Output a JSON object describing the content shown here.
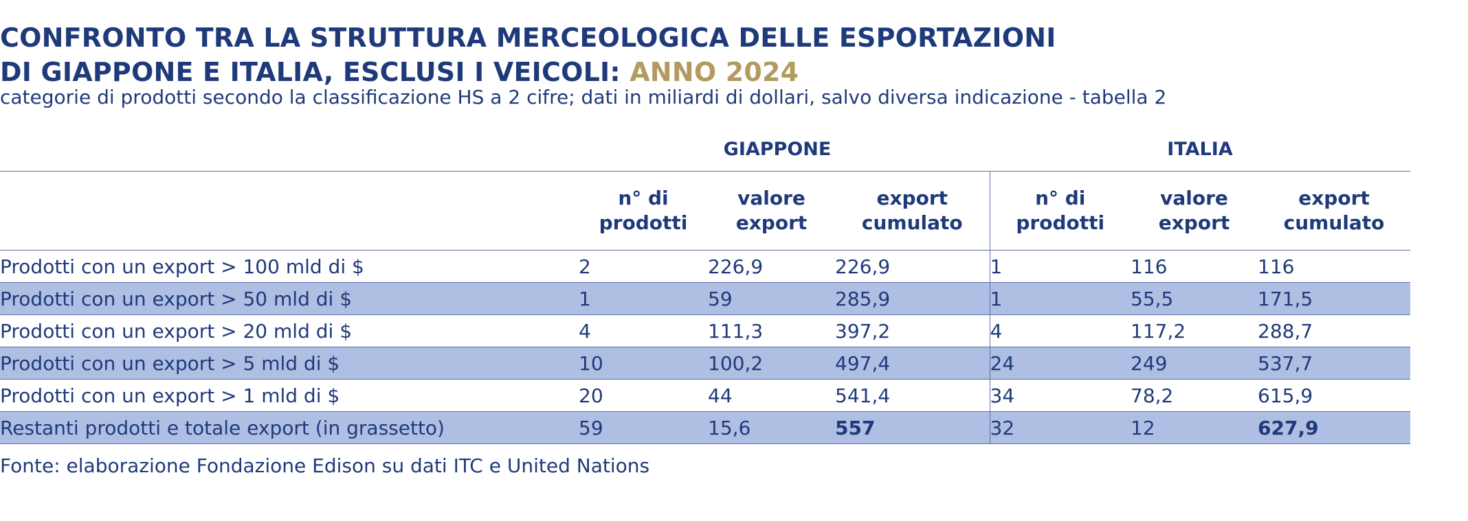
{
  "title": {
    "line1": "CONFRONTO TRA LA STRUTTURA MERCEOLOGICA DELLE ESPORTAZIONI",
    "line2": "DI GIAPPONE E ITALIA, ESCLUSI I VEICOLI:",
    "year": "ANNO 2024"
  },
  "subtitle": "categorie di prodotti secondo la classificazione HS a 2 cifre; dati in miliardi di dollari, salvo diversa indicazione - tabella 2",
  "groups": {
    "japan": "GIAPPONE",
    "italy": "ITALIA"
  },
  "columns": {
    "n_products": [
      "n° di",
      "prodotti"
    ],
    "export_value": [
      "valore",
      "export"
    ],
    "cumulative": [
      "export",
      "cumulato"
    ]
  },
  "rows": [
    {
      "label": "Prodotti con un export > 100 mld di $",
      "jp": [
        "2",
        "226,9",
        "226,9"
      ],
      "it": [
        "1",
        "116",
        "116"
      ]
    },
    {
      "label": "Prodotti con un export > 50 mld di $",
      "jp": [
        "1",
        "59",
        "285,9"
      ],
      "it": [
        "1",
        "55,5",
        "171,5"
      ]
    },
    {
      "label": "Prodotti con un export > 20 mld di $",
      "jp": [
        "4",
        "111,3",
        "397,2"
      ],
      "it": [
        "4",
        "117,2",
        "288,7"
      ]
    },
    {
      "label": "Prodotti con un export > 5 mld di $",
      "jp": [
        "10",
        "100,2",
        "497,4"
      ],
      "it": [
        "24",
        "249",
        "537,7"
      ]
    },
    {
      "label": "Prodotti con un export > 1 mld di $",
      "jp": [
        "20",
        "44",
        "541,4"
      ],
      "it": [
        "34",
        "78,2",
        "615,9"
      ]
    },
    {
      "label": "Restanti prodotti e totale export (in grassetto)",
      "jp": [
        "59",
        "15,6",
        "557"
      ],
      "it": [
        "32",
        "12",
        "627,9"
      ]
    }
  ],
  "source": "Fonte: elaborazione Fondazione Edison su dati ITC e United Nations",
  "colors": {
    "text": "#1f3a7a",
    "accent": "#b39a5e",
    "row_shade": "#aebfe3",
    "rule": "#5b6fa6"
  }
}
